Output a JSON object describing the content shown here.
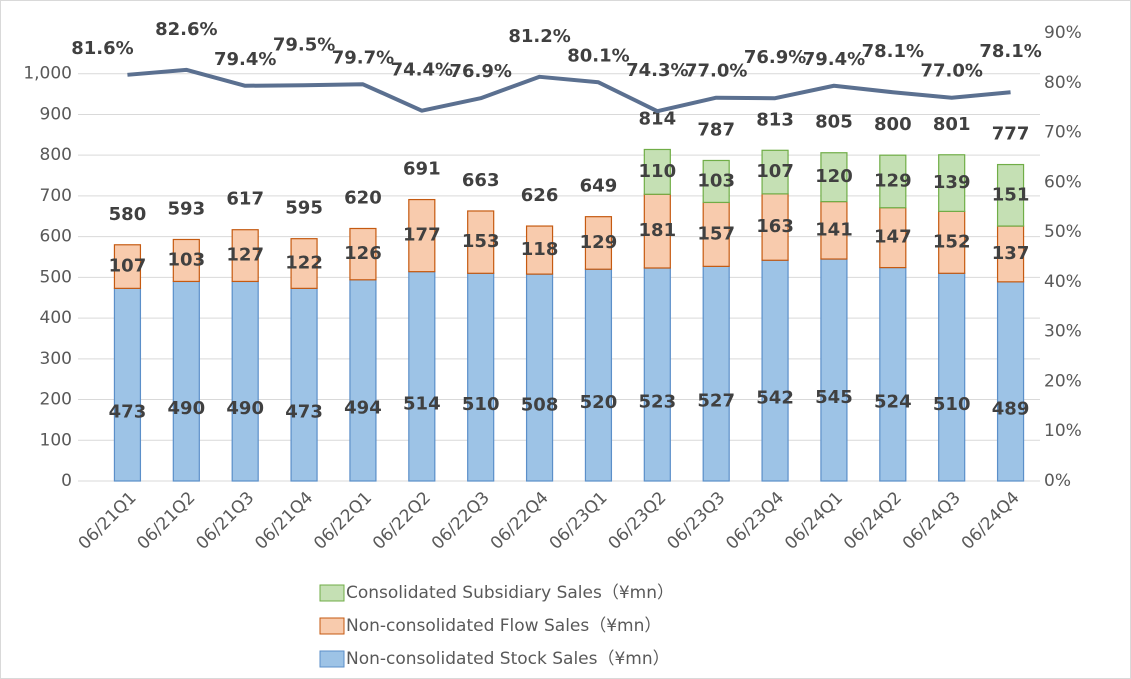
{
  "chart_data": {
    "type": "bar",
    "stacked": true,
    "categories": [
      "06/21Q1",
      "06/21Q2",
      "06/21Q3",
      "06/21Q4",
      "06/22Q1",
      "06/22Q2",
      "06/22Q3",
      "06/22Q4",
      "06/23Q1",
      "06/23Q2",
      "06/23Q3",
      "06/23Q4",
      "06/24Q1",
      "06/24Q2",
      "06/24Q3",
      "06/24Q4"
    ],
    "series": [
      {
        "name": "Non-consolidated Stock Sales（¥mn）",
        "color": "#9dc3e6",
        "edge_color": "#5b8fc9",
        "values": [
          473,
          490,
          490,
          473,
          494,
          514,
          510,
          508,
          520,
          523,
          527,
          542,
          545,
          524,
          510,
          489
        ]
      },
      {
        "name": "Non-consolidated Flow Sales（¥mn）",
        "color": "#f8cbad",
        "edge_color": "#c55a11",
        "values": [
          107,
          103,
          127,
          122,
          126,
          177,
          153,
          118,
          129,
          181,
          157,
          163,
          141,
          147,
          152,
          137
        ]
      },
      {
        "name": "Consolidated Subsidiary Sales（¥mn）",
        "color": "#c5e0b4",
        "edge_color": "#70ad47",
        "values": [
          null,
          null,
          null,
          null,
          null,
          null,
          null,
          null,
          null,
          110,
          103,
          107,
          120,
          129,
          139,
          151
        ]
      },
      {
        "type": "line",
        "axis": "y2",
        "color": "#5b7090",
        "values": [
          81.6,
          82.6,
          79.4,
          79.5,
          79.7,
          74.4,
          76.9,
          81.2,
          80.1,
          74.3,
          77.0,
          76.9,
          79.4,
          78.1,
          77.0,
          78.1
        ],
        "value_labels": [
          "81.6%",
          "82.6%",
          "79.4%",
          "79.5%",
          "79.7%",
          "74.4%",
          "76.9%",
          "81.2%",
          "80.1%",
          "74.3%",
          "77.0%",
          "76.9%",
          "79.4%",
          "78.1%",
          "77.0%",
          "78.1%"
        ]
      }
    ],
    "totals": [
      580,
      593,
      617,
      595,
      620,
      691,
      663,
      626,
      649,
      814,
      787,
      813,
      805,
      800,
      801,
      777
    ],
    "ylim": [
      0,
      1100
    ],
    "yticks": [
      0,
      100,
      200,
      300,
      400,
      500,
      600,
      700,
      800,
      900,
      {
        "value": 1000,
        "label": "1,000"
      }
    ],
    "y2lim": [
      0,
      90
    ],
    "y2ticks": [
      {
        "value": 0,
        "label": "0%"
      },
      {
        "value": 10,
        "label": "10%"
      },
      {
        "value": 20,
        "label": "20%"
      },
      {
        "value": 30,
        "label": "30%"
      },
      {
        "value": 40,
        "label": "40%"
      },
      {
        "value": 50,
        "label": "50%"
      },
      {
        "value": 60,
        "label": "60%"
      },
      {
        "value": 70,
        "label": "70%"
      },
      {
        "value": 80,
        "label": "80%"
      },
      {
        "value": 90,
        "label": "90%"
      }
    ],
    "grid": true
  }
}
